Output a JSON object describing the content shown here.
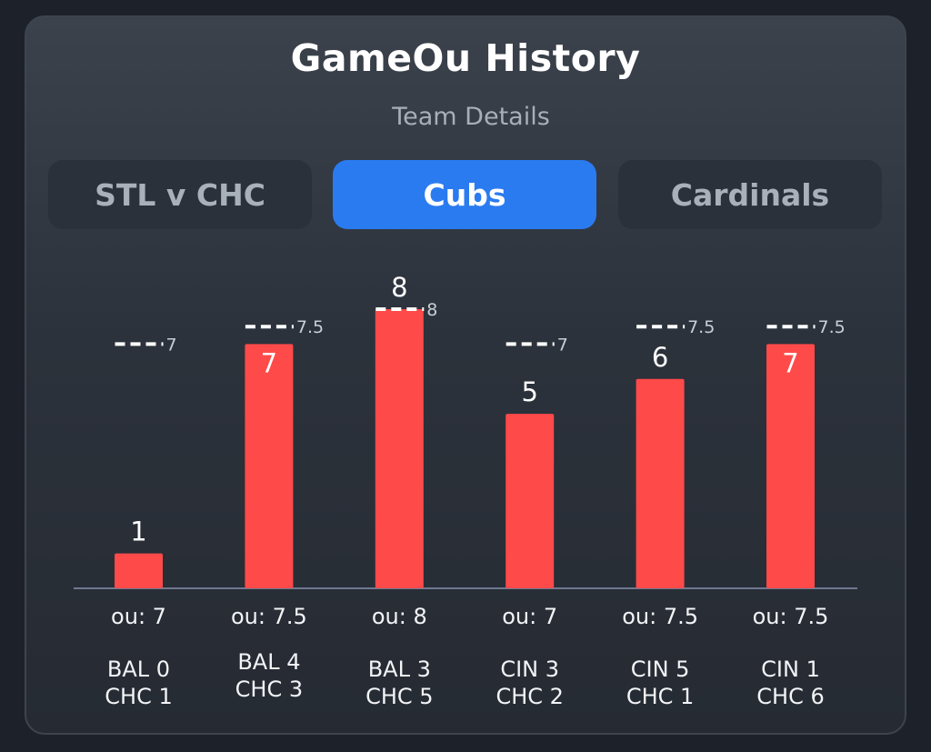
{
  "header": {
    "title": "GameOu History",
    "subtitle": "Team Details"
  },
  "tabs": [
    {
      "label": "STL v CHC",
      "active": false
    },
    {
      "label": "Cubs",
      "active": true
    },
    {
      "label": "Cardinals",
      "active": false
    }
  ],
  "colors": {
    "bar": "#ff4a4a",
    "accent": "#2b7bf0",
    "line_marker": "#ffffff",
    "baseline": "#6f7891"
  },
  "chart_data": {
    "type": "bar",
    "title": "GameOu History",
    "subtitle": "Team Details",
    "categories": [
      "BAL 0 CHC 1",
      "BAL 4 CHC 3",
      "BAL 3 CHC 5",
      "CIN 3 CHC 2",
      "CIN 5 CHC 1",
      "CIN 1 CHC 6"
    ],
    "values": [
      1,
      7,
      8,
      5,
      6,
      7
    ],
    "value_labels": [
      "1",
      "7",
      "8",
      "5",
      "6",
      "7"
    ],
    "ou_lines": [
      7,
      7.5,
      8,
      7,
      7.5,
      7.5
    ],
    "ou_line_labels": [
      "7",
      "7.5",
      "8",
      "7",
      "7.5",
      "7.5"
    ],
    "ou_labels": [
      "ou: 7",
      "ou: 7.5",
      "ou: 8",
      "ou: 7",
      "ou: 7.5",
      "ou: 7.5"
    ],
    "scores": [
      {
        "line1": "BAL 0",
        "line2": "CHC 1"
      },
      {
        "line1": "BAL 4",
        "line2": "CHC 3"
      },
      {
        "line1": "BAL 3",
        "line2": "CHC 5"
      },
      {
        "line1": "CIN 3",
        "line2": "CHC 2"
      },
      {
        "line1": "CIN 5",
        "line2": "CHC 1"
      },
      {
        "line1": "CIN 1",
        "line2": "CHC 6"
      }
    ],
    "ylim": [
      0,
      8
    ],
    "xlabel": "",
    "ylabel": ""
  }
}
